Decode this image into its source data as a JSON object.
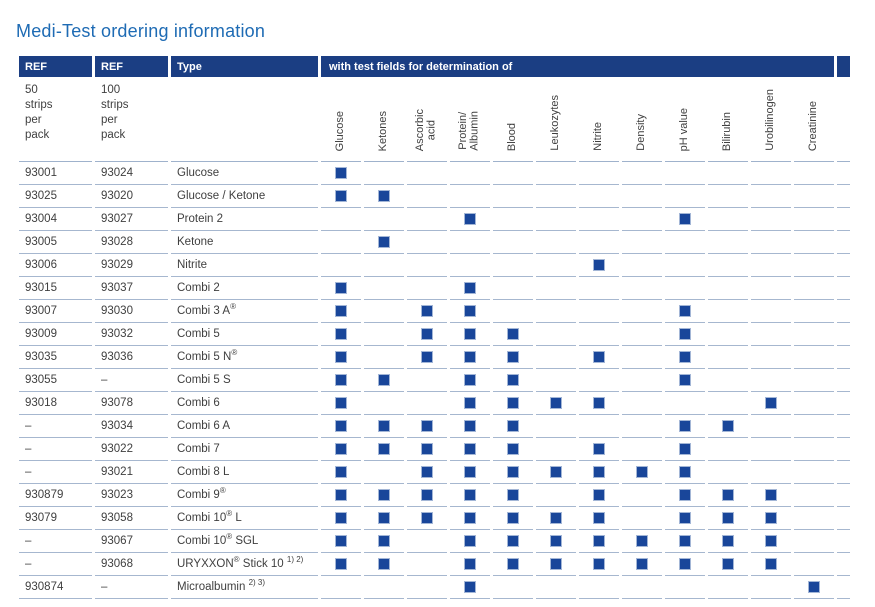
{
  "title": "Medi-Test ordering information",
  "colors": {
    "header_bar": "#1b3e83",
    "square": "#19469a",
    "title_text": "#1e6bb4",
    "row_line": "#a6b7cf"
  },
  "table": {
    "header": {
      "ref1": "REF",
      "ref2": "REF",
      "type": "Type",
      "fields_title": "with test fields for determination of"
    },
    "subheader": {
      "pack50": "50\nstrips\nper\npack",
      "pack100": "100\nstrips\nper\npack"
    },
    "field_columns": [
      "Glucose",
      "Ketones",
      "Ascorbic\nacid",
      "Protein/\nAlbumin",
      "Blood",
      "Leukozytes",
      "Nitrite",
      "Density",
      "pH value",
      "Bilirubin",
      "Urobilinogen",
      "Creatinine"
    ],
    "rows": [
      {
        "ref50": "93001",
        "ref100": "93024",
        "type": "Glucose",
        "fields": [
          1,
          0,
          0,
          0,
          0,
          0,
          0,
          0,
          0,
          0,
          0,
          0
        ]
      },
      {
        "ref50": "93025",
        "ref100": "93020",
        "type": "Glucose / Ketone",
        "fields": [
          1,
          1,
          0,
          0,
          0,
          0,
          0,
          0,
          0,
          0,
          0,
          0
        ]
      },
      {
        "ref50": "93004",
        "ref100": "93027",
        "type": "Protein 2",
        "fields": [
          0,
          0,
          0,
          1,
          0,
          0,
          0,
          0,
          1,
          0,
          0,
          0
        ]
      },
      {
        "ref50": "93005",
        "ref100": "93028",
        "type": "Ketone",
        "fields": [
          0,
          1,
          0,
          0,
          0,
          0,
          0,
          0,
          0,
          0,
          0,
          0
        ]
      },
      {
        "ref50": "93006",
        "ref100": "93029",
        "type": "Nitrite",
        "fields": [
          0,
          0,
          0,
          0,
          0,
          0,
          1,
          0,
          0,
          0,
          0,
          0
        ]
      },
      {
        "ref50": "93015",
        "ref100": "93037",
        "type": "Combi 2",
        "fields": [
          1,
          0,
          0,
          1,
          0,
          0,
          0,
          0,
          0,
          0,
          0,
          0
        ]
      },
      {
        "ref50": "93007",
        "ref100": "93030",
        "type": "Combi 3 A®",
        "fields": [
          1,
          0,
          1,
          1,
          0,
          0,
          0,
          0,
          1,
          0,
          0,
          0
        ]
      },
      {
        "ref50": "93009",
        "ref100": "93032",
        "type": "Combi 5",
        "fields": [
          1,
          0,
          1,
          1,
          1,
          0,
          0,
          0,
          1,
          0,
          0,
          0
        ]
      },
      {
        "ref50": "93035",
        "ref100": "93036",
        "type": "Combi 5 N®",
        "fields": [
          1,
          0,
          1,
          1,
          1,
          0,
          1,
          0,
          1,
          0,
          0,
          0
        ]
      },
      {
        "ref50": "93055",
        "ref100": "–",
        "type": "Combi 5 S",
        "fields": [
          1,
          1,
          0,
          1,
          1,
          0,
          0,
          0,
          1,
          0,
          0,
          0
        ]
      },
      {
        "ref50": "93018",
        "ref100": "93078",
        "type": "Combi 6",
        "fields": [
          1,
          0,
          0,
          1,
          1,
          1,
          1,
          0,
          0,
          0,
          1,
          0
        ]
      },
      {
        "ref50": "–",
        "ref100": "93034",
        "type": "Combi 6 A",
        "fields": [
          1,
          1,
          1,
          1,
          1,
          0,
          0,
          0,
          1,
          1,
          0,
          0
        ]
      },
      {
        "ref50": "–",
        "ref100": "93022",
        "type": "Combi 7",
        "fields": [
          1,
          1,
          1,
          1,
          1,
          0,
          1,
          0,
          1,
          0,
          0,
          0
        ]
      },
      {
        "ref50": "–",
        "ref100": "93021",
        "type": "Combi 8 L",
        "fields": [
          1,
          0,
          1,
          1,
          1,
          1,
          1,
          1,
          1,
          0,
          0,
          0
        ]
      },
      {
        "ref50": "930879",
        "ref100": "93023",
        "type": "Combi 9®",
        "fields": [
          1,
          1,
          1,
          1,
          1,
          0,
          1,
          0,
          1,
          1,
          1,
          0
        ]
      },
      {
        "ref50": "93079",
        "ref100": "93058",
        "type": "Combi 10® L",
        "fields": [
          1,
          1,
          1,
          1,
          1,
          1,
          1,
          0,
          1,
          1,
          1,
          0
        ]
      },
      {
        "ref50": "–",
        "ref100": "93067",
        "type": "Combi 10® SGL",
        "fields": [
          1,
          1,
          0,
          1,
          1,
          1,
          1,
          1,
          1,
          1,
          1,
          0
        ]
      },
      {
        "ref50": "–",
        "ref100": "93068",
        "type": "URYXXON® Stick 10 1) 2)",
        "fields": [
          1,
          1,
          0,
          1,
          1,
          1,
          1,
          1,
          1,
          1,
          1,
          0
        ]
      },
      {
        "ref50": "930874",
        "ref100": "–",
        "type": "Microalbumin 2) 3)",
        "fields": [
          0,
          0,
          0,
          1,
          0,
          0,
          0,
          0,
          0,
          0,
          0,
          1
        ]
      }
    ]
  }
}
